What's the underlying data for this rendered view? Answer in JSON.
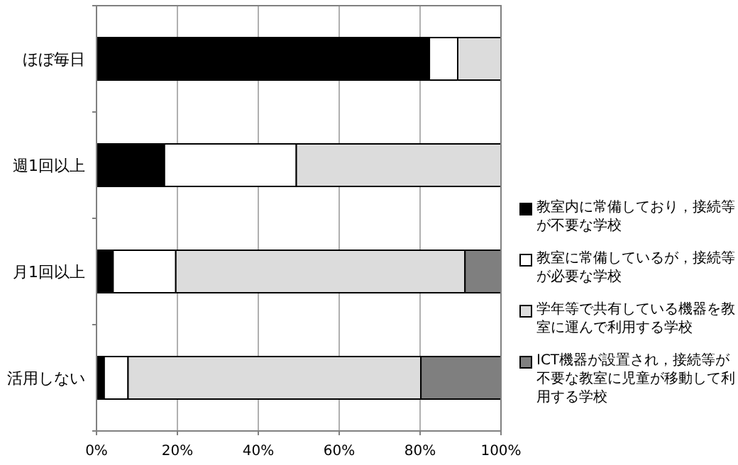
{
  "chart_data": {
    "type": "bar",
    "orientation": "horizontal",
    "stacked": true,
    "categories": [
      "ほぼ毎日",
      "週1回以上",
      "月1回以上",
      "活用しない"
    ],
    "series": [
      {
        "name": "教室内に常備しており，接続等が不要な学校",
        "color": "#000000",
        "values": [
          82.3,
          16.8,
          4.1,
          1.9
        ]
      },
      {
        "name": "教室に常備しているが，接続等が必要な学校",
        "color": "#ffffff",
        "values": [
          7.0,
          32.6,
          15.5,
          5.9
        ]
      },
      {
        "name": "学年等で共有している機器を教室に運んで利用する学校",
        "color": "#dcdcdc",
        "values": [
          10.7,
          50.6,
          71.5,
          72.4
        ]
      },
      {
        "name": "ICT機器が設置され，接続等が不要な教室に児童が移動して利用する学校",
        "color": "#7f7f7f",
        "values": [
          0,
          0,
          8.9,
          19.8
        ]
      }
    ],
    "xlim": [
      0,
      100
    ],
    "xticks": [
      {
        "value": 0,
        "label": "0%"
      },
      {
        "value": 20,
        "label": "20%"
      },
      {
        "value": 40,
        "label": "40%"
      },
      {
        "value": 60,
        "label": "60%"
      },
      {
        "value": 80,
        "label": "80%"
      },
      {
        "value": 100,
        "label": "100%"
      }
    ],
    "grid": "x",
    "legend": "right"
  }
}
